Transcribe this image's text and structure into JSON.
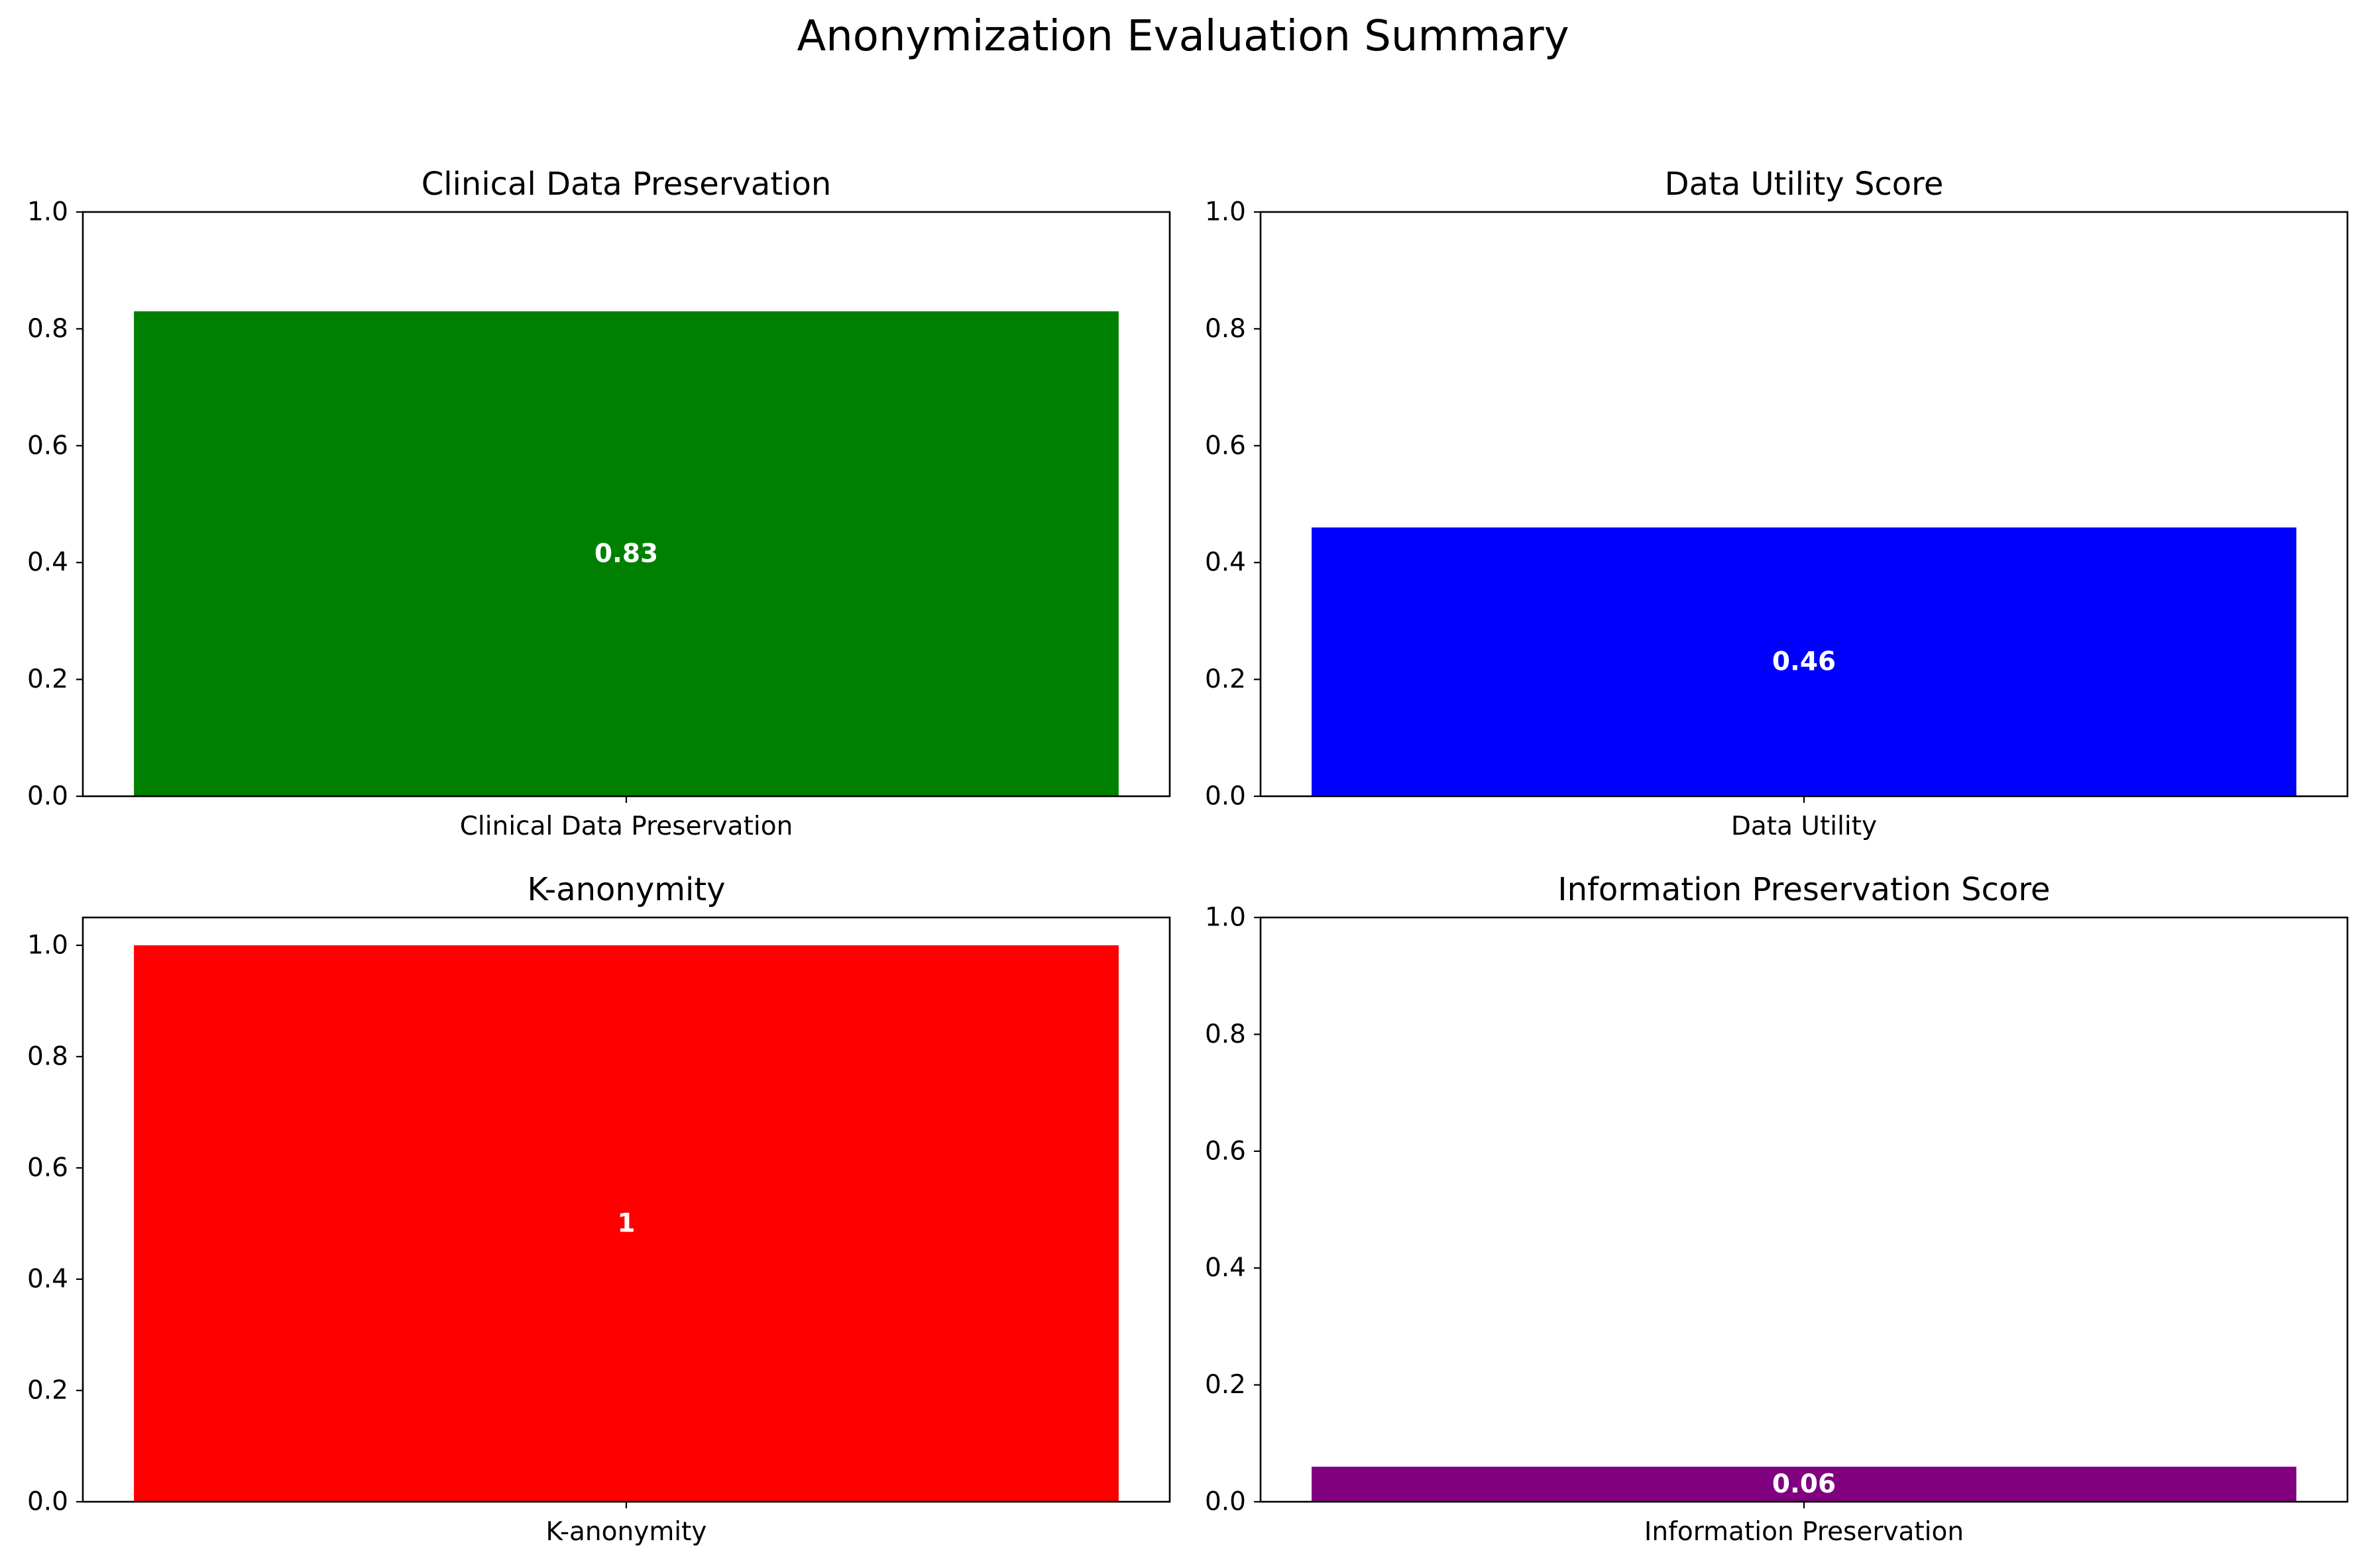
{
  "figure": {
    "title": "Anonymization Evaluation Summary"
  },
  "chart_data": [
    {
      "type": "bar",
      "title": "Clinical Data Preservation",
      "categories": [
        "Clinical Data Preservation"
      ],
      "values": [
        0.83
      ],
      "value_labels": [
        "0.83"
      ],
      "color": "#008000",
      "ylim": [
        0,
        1.0
      ],
      "yticks": [
        0.0,
        0.2,
        0.4,
        0.6,
        0.8,
        1.0
      ],
      "ytick_labels": [
        "0.0",
        "0.2",
        "0.4",
        "0.6",
        "0.8",
        "1.0"
      ],
      "xlabel": "",
      "ylabel": ""
    },
    {
      "type": "bar",
      "title": "Data Utility Score",
      "categories": [
        "Data Utility"
      ],
      "values": [
        0.46
      ],
      "value_labels": [
        "0.46"
      ],
      "color": "#0000ff",
      "ylim": [
        0,
        1.0
      ],
      "yticks": [
        0.0,
        0.2,
        0.4,
        0.6,
        0.8,
        1.0
      ],
      "ytick_labels": [
        "0.0",
        "0.2",
        "0.4",
        "0.6",
        "0.8",
        "1.0"
      ],
      "xlabel": "",
      "ylabel": ""
    },
    {
      "type": "bar",
      "title": "K-anonymity",
      "categories": [
        "K-anonymity"
      ],
      "values": [
        1
      ],
      "value_labels": [
        "1"
      ],
      "color": "#ff0000",
      "ylim": [
        0,
        1.05
      ],
      "yticks": [
        0.0,
        0.2,
        0.4,
        0.6,
        0.8,
        1.0
      ],
      "ytick_labels": [
        "0.0",
        "0.2",
        "0.4",
        "0.6",
        "0.8",
        "1.0"
      ],
      "xlabel": "",
      "ylabel": ""
    },
    {
      "type": "bar",
      "title": "Information Preservation Score",
      "categories": [
        "Information Preservation"
      ],
      "values": [
        0.06
      ],
      "value_labels": [
        "0.06"
      ],
      "color": "#800080",
      "ylim": [
        0,
        1.0
      ],
      "yticks": [
        0.0,
        0.2,
        0.4,
        0.6,
        0.8,
        1.0
      ],
      "ytick_labels": [
        "0.0",
        "0.2",
        "0.4",
        "0.6",
        "0.8",
        "1.0"
      ],
      "xlabel": "",
      "ylabel": ""
    }
  ]
}
